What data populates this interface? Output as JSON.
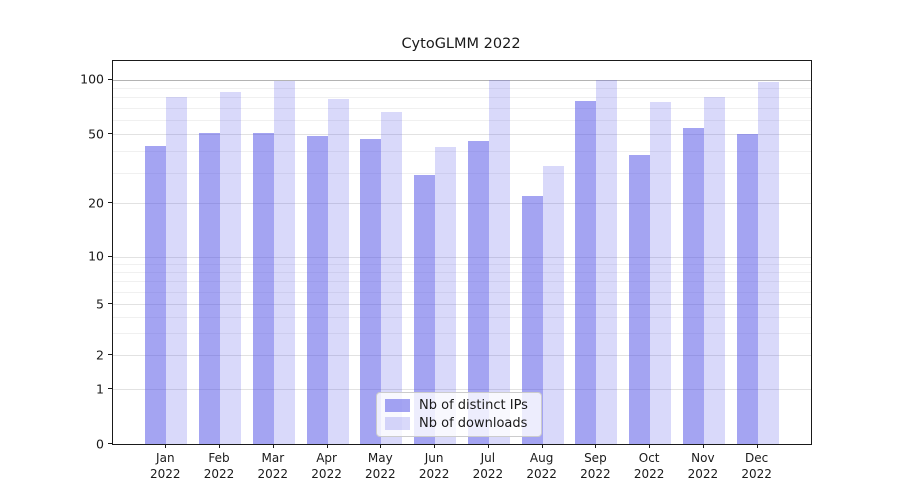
{
  "figure": {
    "background": "#ffffff"
  },
  "chart_data": {
    "type": "bar",
    "title": "CytoGLMM 2022",
    "categories": [
      "Jan 2022",
      "Feb 2022",
      "Mar 2022",
      "Apr 2022",
      "May 2022",
      "Jun 2022",
      "Jul 2022",
      "Aug 2022",
      "Sep 2022",
      "Oct 2022",
      "Nov 2022",
      "Dec 2022"
    ],
    "months": [
      "Jan",
      "Feb",
      "Mar",
      "Apr",
      "May",
      "Jun",
      "Jul",
      "Aug",
      "Sep",
      "Oct",
      "Nov",
      "Dec"
    ],
    "year": "2022",
    "series": [
      {
        "name": "Nb of distinct IPs",
        "color": "#5050e6",
        "alpha": 0.52,
        "values": [
          43,
          51,
          51,
          49,
          47,
          29,
          46,
          22,
          76,
          38,
          54,
          50
        ]
      },
      {
        "name": "Nb of downloads",
        "color": "#5050e6",
        "alpha": 0.22,
        "values": [
          80,
          85,
          98,
          78,
          66,
          42,
          100,
          33,
          100,
          75,
          80,
          97
        ]
      }
    ],
    "yscale": "symlog",
    "ylabel": "",
    "xlabel": "",
    "yticks": [
      0,
      1,
      2,
      5,
      10,
      20,
      50,
      100
    ],
    "minor_gridline_values": [
      3,
      4,
      6,
      7,
      8,
      9,
      30,
      40,
      60,
      70,
      80,
      90
    ],
    "grid": true,
    "legend": {
      "position": "lower center",
      "entries": [
        "Nb of distinct IPs",
        "Nb of downloads"
      ]
    },
    "colors": {
      "major_gridline": "#e2e2e2",
      "top_gridline": "#b3b3b3",
      "minor_gridline": "#f0f0f0",
      "axis": "#1a1a1a",
      "text": "#1a1a1a"
    }
  }
}
